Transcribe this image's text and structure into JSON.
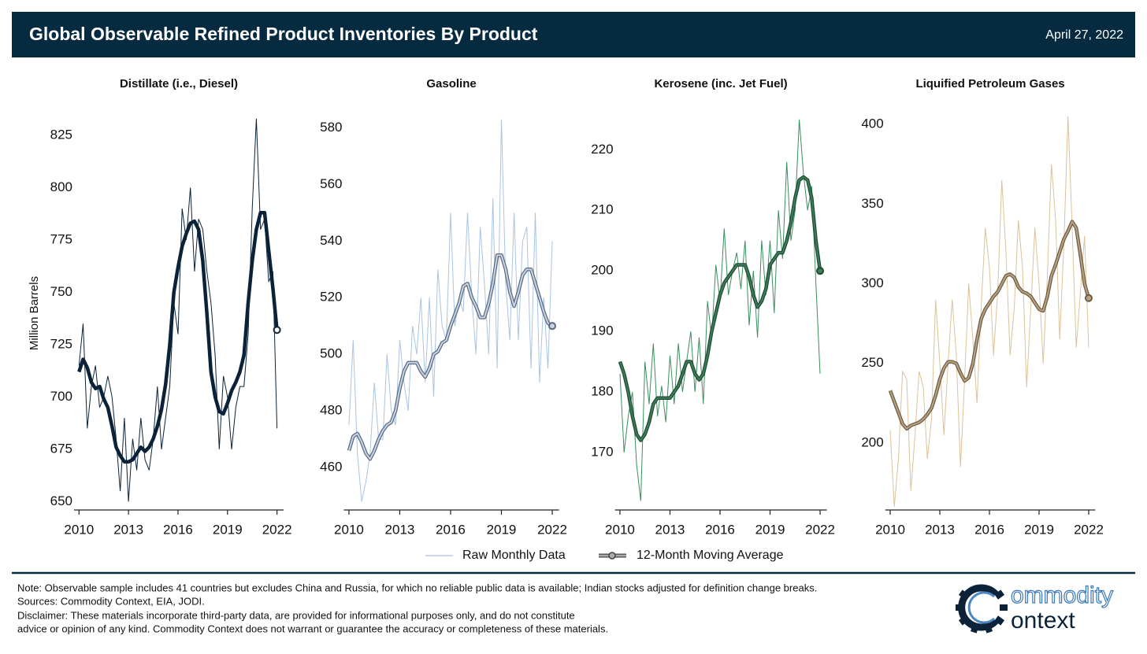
{
  "header": {
    "title": "Global Observable Refined Product Inventories By Product",
    "date": "April 27, 2022"
  },
  "chart_data": [
    {
      "type": "line",
      "title": "Distillate (i.e., Diesel)",
      "ylabel": "Million Barrels",
      "x": [
        2010,
        2010.25,
        2010.5,
        2010.75,
        2011,
        2011.25,
        2011.5,
        2011.75,
        2012,
        2012.25,
        2012.5,
        2012.75,
        2013,
        2013.25,
        2013.5,
        2013.75,
        2014,
        2014.25,
        2014.5,
        2014.75,
        2015,
        2015.25,
        2015.5,
        2015.75,
        2016,
        2016.25,
        2016.5,
        2016.75,
        2017,
        2017.25,
        2017.5,
        2017.75,
        2018,
        2018.25,
        2018.5,
        2018.75,
        2019,
        2019.25,
        2019.5,
        2019.75,
        2020,
        2020.25,
        2020.5,
        2020.75,
        2021,
        2021.25,
        2021.5,
        2021.75,
        2022
      ],
      "series": [
        {
          "name": "Raw Monthly Data",
          "color": "#0b2239",
          "values": [
            715,
            735,
            685,
            705,
            715,
            695,
            700,
            710,
            700,
            680,
            655,
            690,
            650,
            680,
            665,
            690,
            670,
            665,
            680,
            705,
            675,
            690,
            705,
            745,
            730,
            790,
            775,
            800,
            760,
            785,
            780,
            760,
            745,
            720,
            675,
            710,
            700,
            675,
            695,
            705,
            705,
            730,
            790,
            833,
            780,
            785,
            755,
            760,
            685
          ]
        },
        {
          "name": "12-Month Moving Average",
          "color": "#0b2239",
          "edge_color": "#0b2239",
          "values": [
            712,
            718,
            714,
            707,
            704,
            705,
            699,
            695,
            686,
            676,
            672,
            669,
            669,
            670,
            673,
            676,
            674,
            676,
            680,
            686,
            694,
            706,
            725,
            750,
            762,
            772,
            778,
            783,
            784,
            780,
            765,
            740,
            712,
            700,
            693,
            692,
            697,
            703,
            707,
            712,
            720,
            745,
            765,
            780,
            788,
            788,
            770,
            752,
            732
          ]
        }
      ],
      "xlim": [
        2009.7,
        2022.4
      ],
      "ylim": [
        646,
        834
      ],
      "xticks": [
        2010,
        2013,
        2016,
        2019,
        2022
      ],
      "yticks": [
        650,
        675,
        700,
        725,
        750,
        775,
        800,
        825
      ]
    },
    {
      "type": "line",
      "title": "Gasoline",
      "x": [
        2010,
        2010.25,
        2010.5,
        2010.75,
        2011,
        2011.25,
        2011.5,
        2011.75,
        2012,
        2012.25,
        2012.5,
        2012.75,
        2013,
        2013.25,
        2013.5,
        2013.75,
        2014,
        2014.25,
        2014.5,
        2014.75,
        2015,
        2015.25,
        2015.5,
        2015.75,
        2016,
        2016.25,
        2016.5,
        2016.75,
        2017,
        2017.25,
        2017.5,
        2017.75,
        2018,
        2018.25,
        2018.5,
        2018.75,
        2019,
        2019.25,
        2019.5,
        2019.75,
        2020,
        2020.25,
        2020.5,
        2020.75,
        2021,
        2021.25,
        2021.5,
        2021.75,
        2022
      ],
      "series": [
        {
          "color": "#a9c4e4",
          "values": [
            475,
            505,
            465,
            448,
            455,
            465,
            490,
            470,
            470,
            500,
            480,
            475,
            505,
            490,
            480,
            510,
            500,
            520,
            490,
            520,
            485,
            530,
            510,
            505,
            550,
            510,
            520,
            515,
            550,
            520,
            500,
            545,
            525,
            500,
            555,
            495,
            583,
            525,
            505,
            550,
            505,
            540,
            545,
            495,
            550,
            490,
            520,
            495,
            540
          ]
        },
        {
          "color": "#c9d5e6",
          "edge_color": "#5a6b80",
          "values": [
            466,
            471,
            472,
            469,
            465,
            463,
            466,
            470,
            473,
            475,
            476,
            480,
            488,
            494,
            497,
            497,
            497,
            494,
            492,
            495,
            500,
            501,
            504,
            505,
            510,
            514,
            518,
            524,
            525,
            520,
            517,
            513,
            513,
            518,
            525,
            535,
            535,
            530,
            522,
            517,
            522,
            528,
            530,
            530,
            525,
            520,
            515,
            511,
            510
          ]
        }
      ],
      "xlim": [
        2009.7,
        2022.4
      ],
      "ylim": [
        445,
        584
      ],
      "xticks": [
        2010,
        2013,
        2016,
        2019,
        2022
      ],
      "yticks": [
        460,
        480,
        500,
        520,
        540,
        560,
        580
      ]
    },
    {
      "type": "line",
      "title": "Kerosene (inc. Jet Fuel)",
      "x": [
        2010,
        2010.25,
        2010.5,
        2010.75,
        2011,
        2011.25,
        2011.5,
        2011.75,
        2012,
        2012.25,
        2012.5,
        2012.75,
        2013,
        2013.25,
        2013.5,
        2013.75,
        2014,
        2014.25,
        2014.5,
        2014.75,
        2015,
        2015.25,
        2015.5,
        2015.75,
        2016,
        2016.25,
        2016.5,
        2016.75,
        2017,
        2017.25,
        2017.5,
        2017.75,
        2018,
        2018.25,
        2018.5,
        2018.75,
        2019,
        2019.25,
        2019.5,
        2019.75,
        2020,
        2020.25,
        2020.5,
        2020.75,
        2021,
        2021.25,
        2021.5,
        2021.75,
        2022
      ],
      "series": [
        {
          "color": "#3a8f5e",
          "values": [
            183,
            170,
            176,
            180,
            168,
            162,
            185,
            178,
            188,
            176,
            181,
            175,
            186,
            178,
            188,
            180,
            185,
            190,
            180,
            189,
            178,
            195,
            189,
            201,
            195,
            207,
            196,
            200,
            203,
            197,
            205,
            191,
            200,
            189,
            205,
            196,
            205,
            193,
            210,
            202,
            218,
            205,
            210,
            225,
            216,
            210,
            214,
            198,
            183
          ]
        },
        {
          "color": "#3d7d57",
          "edge_color": "#1f4a33",
          "values": [
            185,
            183,
            180,
            176,
            173,
            172,
            173,
            175,
            178,
            179,
            179,
            179,
            179,
            180,
            181,
            183,
            185,
            185,
            183,
            182,
            183,
            186,
            190,
            193,
            196,
            198,
            199,
            200,
            201,
            201,
            201,
            199,
            196,
            194,
            195,
            197,
            201,
            202,
            203,
            203,
            205,
            208,
            212,
            215,
            215.5,
            215,
            212,
            205,
            200
          ]
        }
      ],
      "xlim": [
        2009.7,
        2022.4
      ],
      "ylim": [
        160.5,
        225.5
      ],
      "xticks": [
        2010,
        2013,
        2016,
        2019,
        2022
      ],
      "yticks": [
        170,
        180,
        190,
        200,
        210,
        220
      ]
    },
    {
      "type": "line",
      "title": "Liquified Petroleum Gases",
      "x": [
        2010,
        2010.25,
        2010.5,
        2010.75,
        2011,
        2011.25,
        2011.5,
        2011.75,
        2012,
        2012.25,
        2012.5,
        2012.75,
        2013,
        2013.25,
        2013.5,
        2013.75,
        2014,
        2014.25,
        2014.5,
        2014.75,
        2015,
        2015.25,
        2015.5,
        2015.75,
        2016,
        2016.25,
        2016.5,
        2016.75,
        2017,
        2017.25,
        2017.5,
        2017.75,
        2018,
        2018.25,
        2018.5,
        2018.75,
        2019,
        2019.25,
        2019.5,
        2019.75,
        2020,
        2020.25,
        2020.5,
        2020.75,
        2021,
        2021.25,
        2021.5,
        2021.75,
        2022
      ],
      "series": [
        {
          "color": "#dcc299",
          "values": [
            208,
            160,
            190,
            245,
            240,
            170,
            205,
            245,
            235,
            190,
            215,
            290,
            250,
            205,
            250,
            290,
            255,
            185,
            240,
            300,
            265,
            225,
            285,
            335,
            310,
            255,
            295,
            365,
            320,
            255,
            285,
            340,
            310,
            235,
            285,
            335,
            300,
            250,
            305,
            375,
            340,
            265,
            325,
            405,
            335,
            260,
            295,
            330,
            260
          ]
        },
        {
          "color": "#b8a283",
          "edge_color": "#6e5c45",
          "values": [
            233,
            226,
            219,
            212,
            209,
            211,
            212,
            213,
            215,
            218,
            222,
            230,
            240,
            247,
            251,
            251,
            250,
            244,
            239,
            241,
            250,
            265,
            278,
            284,
            288,
            292,
            295,
            300,
            305,
            306,
            304,
            298,
            295,
            294,
            292,
            288,
            284,
            283,
            292,
            305,
            312,
            320,
            328,
            333,
            339,
            335,
            318,
            300,
            291
          ]
        }
      ],
      "xlim": [
        2009.7,
        2022.4
      ],
      "ylim": [
        158,
        405
      ],
      "xticks": [
        2010,
        2013,
        2016,
        2019,
        2022
      ],
      "yticks": [
        200,
        250,
        300,
        350,
        400
      ]
    }
  ],
  "footer": {
    "note": "Note: Observable sample includes 41 countries but excludes China and Russia, for which no reliable public data is available; Indian stocks adjusted for definition change breaks.",
    "sources": "Sources: Commodity Context, EIA, JODI.",
    "disclaimer": [
      "Disclaimer: These materials incorporate third-party data, are provided for informational purposes only, and do not constitute",
      "advice or opinion of any kind. Commodity Context does not warrant or guarantee the accuracy or completeness of these materials."
    ]
  },
  "logo": {
    "line1": "ommodity",
    "line2": "ontext"
  }
}
